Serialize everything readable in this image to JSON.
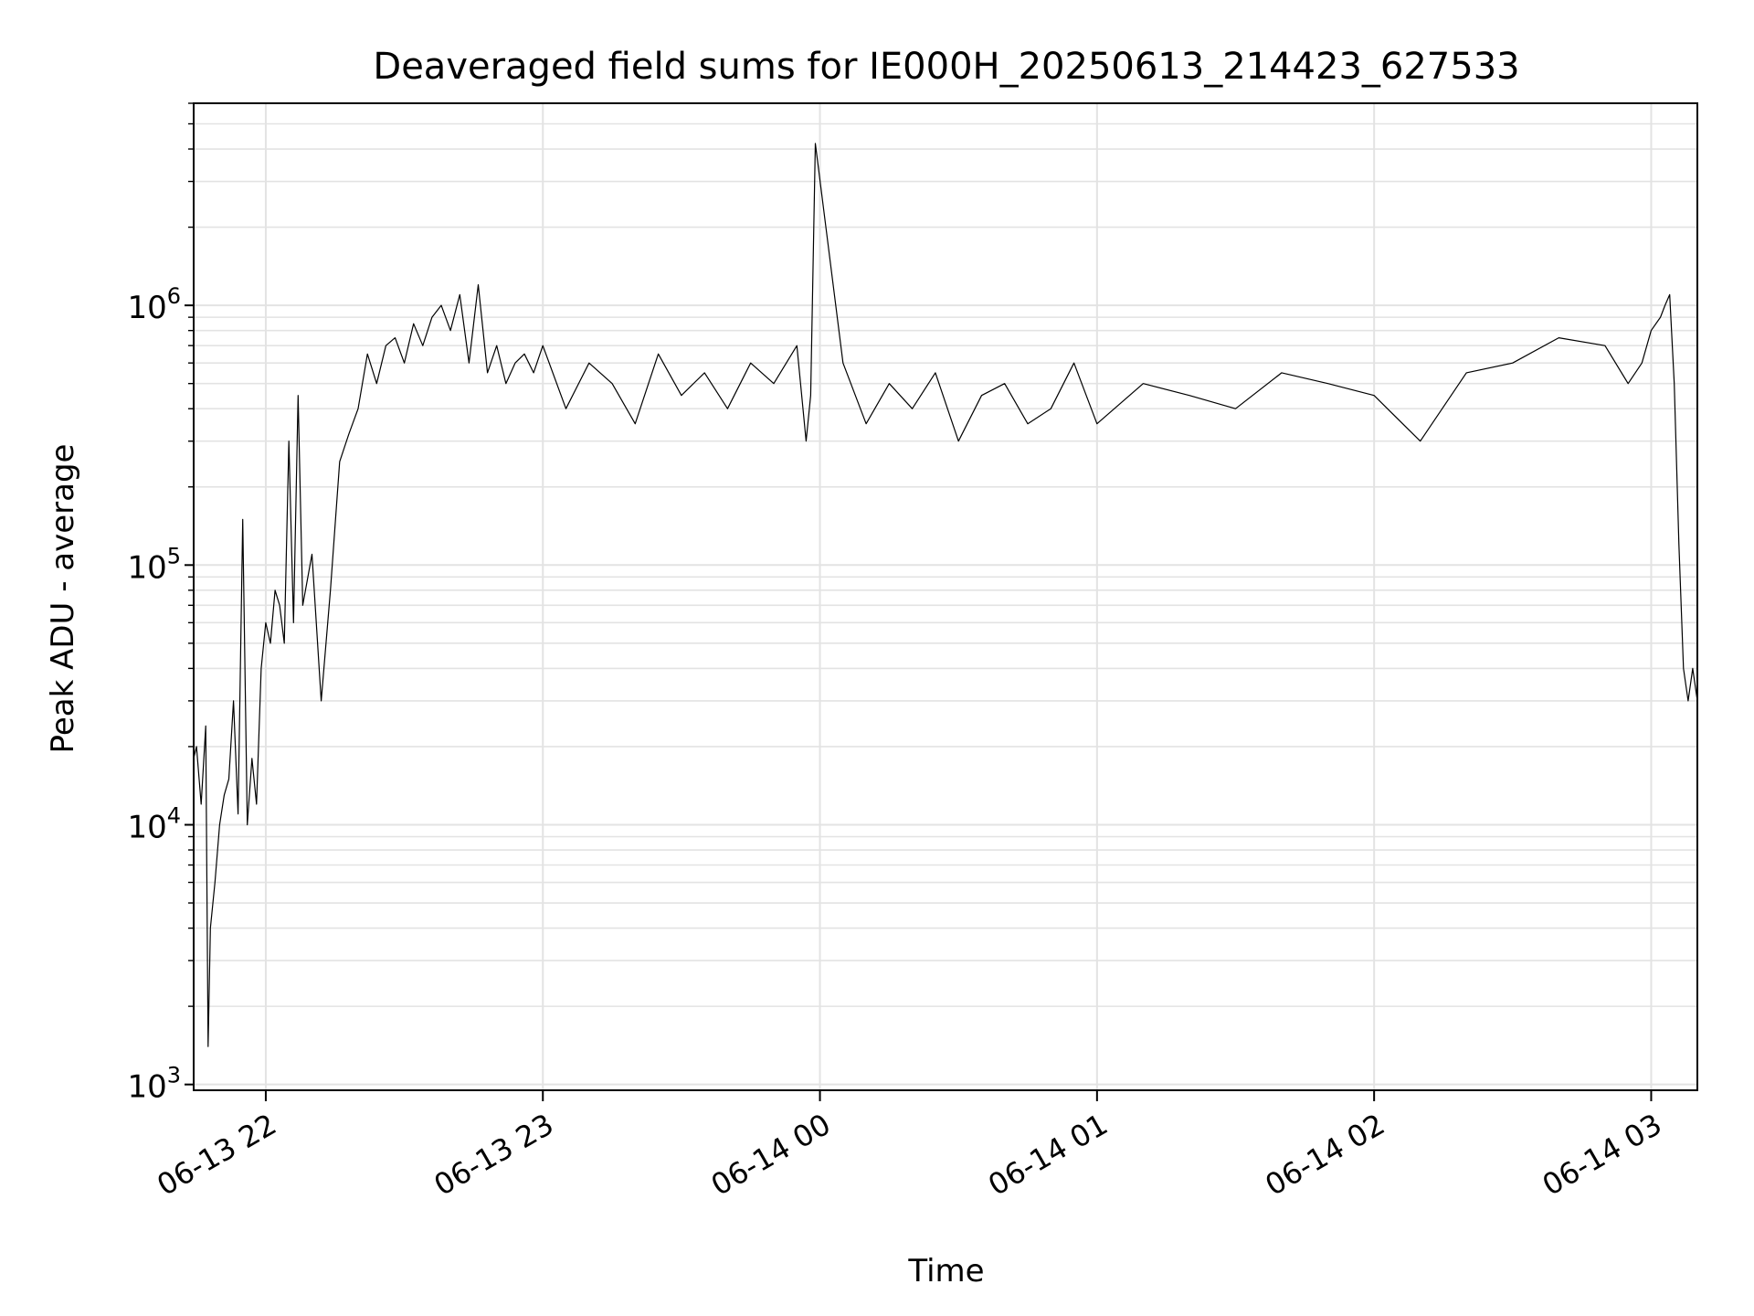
{
  "chart_data": {
    "type": "line",
    "title": "Deaveraged field sums for IE000H_20250613_214423_627533",
    "xlabel": "Time",
    "ylabel": "Peak ADU - average",
    "yscale": "log",
    "ylim": [
      950,
      6000000
    ],
    "y_major_ticks": [
      {
        "value": 1000,
        "base": "10",
        "exp": "3"
      },
      {
        "value": 10000,
        "base": "10",
        "exp": "4"
      },
      {
        "value": 100000,
        "base": "10",
        "exp": "5"
      },
      {
        "value": 1000000,
        "base": "10",
        "exp": "6"
      }
    ],
    "xlim": [
      "2025-06-13T21:44:23",
      "2025-06-14T03:10:00"
    ],
    "x_ticks": [
      {
        "time": "2025-06-13T22:00:00",
        "label": "06-13 22"
      },
      {
        "time": "2025-06-13T23:00:00",
        "label": "06-13 23"
      },
      {
        "time": "2025-06-14T00:00:00",
        "label": "06-14 00"
      },
      {
        "time": "2025-06-14T01:00:00",
        "label": "06-14 01"
      },
      {
        "time": "2025-06-14T02:00:00",
        "label": "06-14 02"
      },
      {
        "time": "2025-06-14T03:00:00",
        "label": "06-14 03"
      }
    ],
    "grid": true,
    "legend": "none",
    "line_color": "#000000",
    "series": [
      {
        "x": [
          "2025-06-13T21:44:23",
          "2025-06-13T21:45:00",
          "2025-06-13T21:46:00",
          "2025-06-13T21:47:00",
          "2025-06-13T21:47:30",
          "2025-06-13T21:48:00",
          "2025-06-13T21:49:00",
          "2025-06-13T21:50:00",
          "2025-06-13T21:51:00",
          "2025-06-13T21:52:00",
          "2025-06-13T21:53:00",
          "2025-06-13T21:54:00",
          "2025-06-13T21:55:00",
          "2025-06-13T21:56:00",
          "2025-06-13T21:57:00",
          "2025-06-13T21:58:00",
          "2025-06-13T21:59:00",
          "2025-06-13T22:00:00",
          "2025-06-13T22:01:00",
          "2025-06-13T22:02:00",
          "2025-06-13T22:03:00",
          "2025-06-13T22:04:00",
          "2025-06-13T22:05:00",
          "2025-06-13T22:06:00",
          "2025-06-13T22:07:00",
          "2025-06-13T22:08:00",
          "2025-06-13T22:10:00",
          "2025-06-13T22:12:00",
          "2025-06-13T22:14:00",
          "2025-06-13T22:16:00",
          "2025-06-13T22:18:00",
          "2025-06-13T22:20:00",
          "2025-06-13T22:22:00",
          "2025-06-13T22:24:00",
          "2025-06-13T22:26:00",
          "2025-06-13T22:28:00",
          "2025-06-13T22:30:00",
          "2025-06-13T22:32:00",
          "2025-06-13T22:34:00",
          "2025-06-13T22:36:00",
          "2025-06-13T22:38:00",
          "2025-06-13T22:40:00",
          "2025-06-13T22:42:00",
          "2025-06-13T22:44:00",
          "2025-06-13T22:46:00",
          "2025-06-13T22:48:00",
          "2025-06-13T22:50:00",
          "2025-06-13T22:52:00",
          "2025-06-13T22:54:00",
          "2025-06-13T22:56:00",
          "2025-06-13T22:58:00",
          "2025-06-13T23:00:00",
          "2025-06-13T23:05:00",
          "2025-06-13T23:10:00",
          "2025-06-13T23:15:00",
          "2025-06-13T23:20:00",
          "2025-06-13T23:25:00",
          "2025-06-13T23:30:00",
          "2025-06-13T23:35:00",
          "2025-06-13T23:40:00",
          "2025-06-13T23:45:00",
          "2025-06-13T23:50:00",
          "2025-06-13T23:55:00",
          "2025-06-13T23:57:00",
          "2025-06-13T23:58:00",
          "2025-06-13T23:59:00",
          "2025-06-14T00:05:00",
          "2025-06-14T00:10:00",
          "2025-06-14T00:15:00",
          "2025-06-14T00:20:00",
          "2025-06-14T00:25:00",
          "2025-06-14T00:30:00",
          "2025-06-14T00:35:00",
          "2025-06-14T00:40:00",
          "2025-06-14T00:45:00",
          "2025-06-14T00:50:00",
          "2025-06-14T00:55:00",
          "2025-06-14T01:00:00",
          "2025-06-14T01:10:00",
          "2025-06-14T01:20:00",
          "2025-06-14T01:30:00",
          "2025-06-14T01:40:00",
          "2025-06-14T01:50:00",
          "2025-06-14T02:00:00",
          "2025-06-14T02:10:00",
          "2025-06-14T02:20:00",
          "2025-06-14T02:30:00",
          "2025-06-14T02:40:00",
          "2025-06-14T02:50:00",
          "2025-06-14T02:55:00",
          "2025-06-14T02:58:00",
          "2025-06-14T03:00:00",
          "2025-06-14T03:02:00",
          "2025-06-14T03:03:00",
          "2025-06-14T03:04:00",
          "2025-06-14T03:05:00",
          "2025-06-14T03:06:00",
          "2025-06-14T03:07:00",
          "2025-06-14T03:08:00",
          "2025-06-14T03:09:00",
          "2025-06-14T03:10:00"
        ],
        "y": [
          18000,
          20000,
          12000,
          24000,
          1400,
          4000,
          6000,
          10000,
          13000,
          15000,
          30000,
          11000,
          150000,
          10000,
          18000,
          12000,
          40000,
          60000,
          50000,
          80000,
          70000,
          50000,
          300000,
          60000,
          450000,
          70000,
          110000,
          30000,
          80000,
          250000,
          320000,
          400000,
          650000,
          500000,
          700000,
          750000,
          600000,
          850000,
          700000,
          900000,
          1000000,
          800000,
          1100000,
          600000,
          1200000,
          550000,
          700000,
          500000,
          600000,
          650000,
          550000,
          700000,
          400000,
          600000,
          500000,
          350000,
          650000,
          450000,
          550000,
          400000,
          600000,
          500000,
          700000,
          300000,
          450000,
          4200000,
          600000,
          350000,
          500000,
          400000,
          550000,
          300000,
          450000,
          500000,
          350000,
          400000,
          600000,
          350000,
          500000,
          450000,
          400000,
          550000,
          500000,
          450000,
          300000,
          550000,
          600000,
          750000,
          700000,
          500000,
          600000,
          800000,
          900000,
          1000000,
          1100000,
          500000,
          120000,
          40000,
          30000,
          40000,
          30000
        ]
      }
    ]
  }
}
